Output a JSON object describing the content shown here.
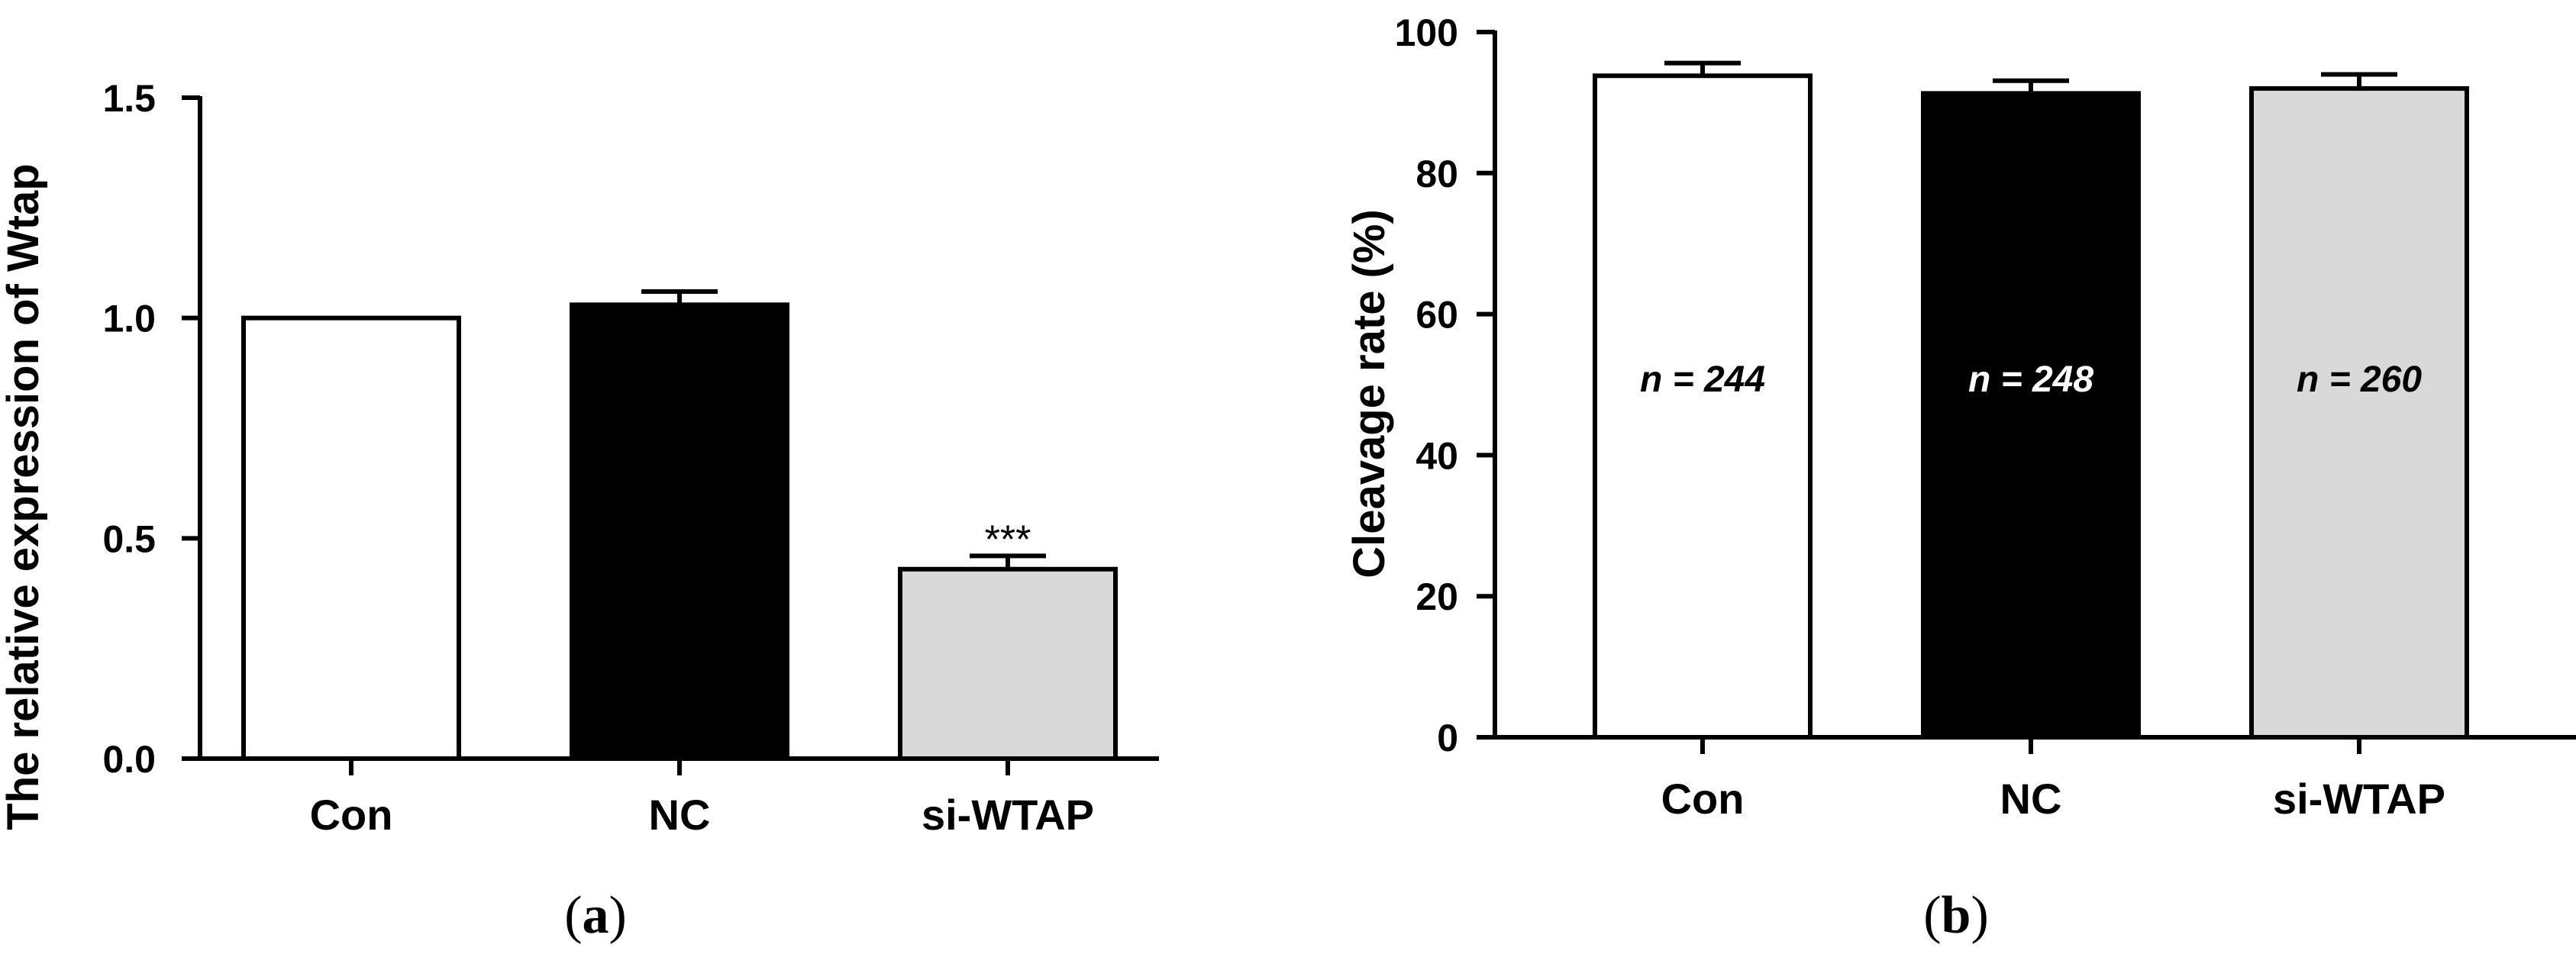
{
  "panels": [
    {
      "label_open": "(",
      "label_letter": "a",
      "label_close": ")"
    },
    {
      "label_open": "(",
      "label_letter": "b",
      "label_close": ")"
    }
  ],
  "chart_data": [
    {
      "type": "bar",
      "ylabel": "The relative expression of Wtap",
      "xlabel": "",
      "categories": [
        "Con",
        "NC",
        "si-WTAP"
      ],
      "values": [
        1.0,
        1.03,
        0.43
      ],
      "errors": [
        0,
        0.03,
        0.03
      ],
      "bar_colors": [
        "#ffffff",
        "#000000",
        "#d9d9d9"
      ],
      "annotations": [
        "",
        "",
        "***"
      ],
      "ylim": [
        0,
        1.5
      ],
      "yticks": [
        0.0,
        0.5,
        1.0,
        1.5
      ],
      "ytick_labels": [
        "0.0",
        "0.5",
        "1.0",
        "1.5"
      ],
      "grid": false
    },
    {
      "type": "bar",
      "ylabel": "Cleavage rate (%)",
      "xlabel": "",
      "categories": [
        "Con",
        "NC",
        "si-WTAP"
      ],
      "values": [
        93.8,
        91.3,
        92.0
      ],
      "errors": [
        1.8,
        1.8,
        2.0
      ],
      "bar_colors": [
        "#ffffff",
        "#000000",
        "#d9d9d9"
      ],
      "bar_texts": [
        "n = 244",
        "n = 248",
        "n = 260"
      ],
      "bar_text_colors": [
        "#000000",
        "#ffffff",
        "#000000"
      ],
      "ylim": [
        0,
        100
      ],
      "yticks": [
        0,
        20,
        40,
        60,
        80,
        100
      ],
      "ytick_labels": [
        "0",
        "20",
        "40",
        "60",
        "80",
        "100"
      ],
      "grid": false
    }
  ]
}
